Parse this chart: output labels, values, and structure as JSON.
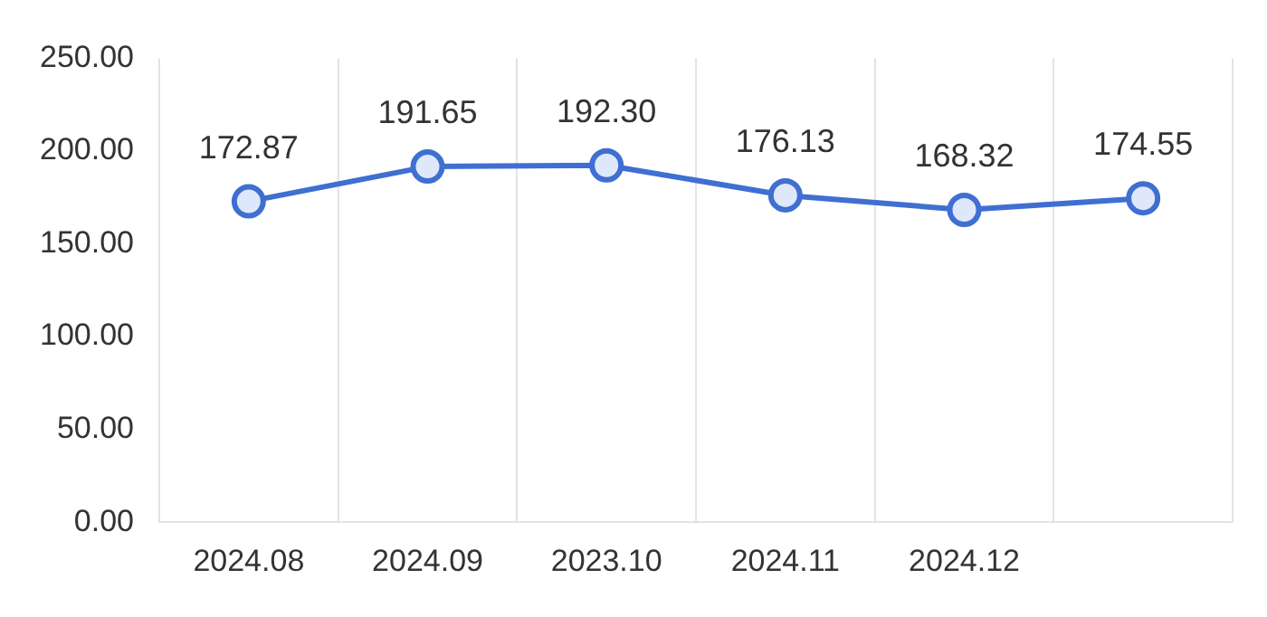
{
  "chart_data": {
    "type": "line",
    "categories": [
      "2024.08",
      "2024.09",
      "2023.10",
      "2024.11",
      "2024.12",
      null
    ],
    "series": [
      {
        "color": "#3f6fd1",
        "values": [
          172.87,
          191.65,
          192.3,
          176.13,
          168.32,
          174.55
        ],
        "value_labels": [
          "172.87",
          "191.65",
          "192.30",
          "176.13",
          "168.32",
          "174.55"
        ]
      }
    ],
    "ylim": [
      0,
      250
    ],
    "yticks": [
      {
        "value": 0,
        "label": "0.00"
      },
      {
        "value": 50,
        "label": "50.00"
      },
      {
        "value": 100,
        "label": "100.00"
      },
      {
        "value": 150,
        "label": "150.00"
      },
      {
        "value": 200,
        "label": "200.00"
      },
      {
        "value": 250,
        "label": "250.00"
      }
    ],
    "grid": "x",
    "marker": "circle",
    "line_style": "solid",
    "legend": false
  }
}
